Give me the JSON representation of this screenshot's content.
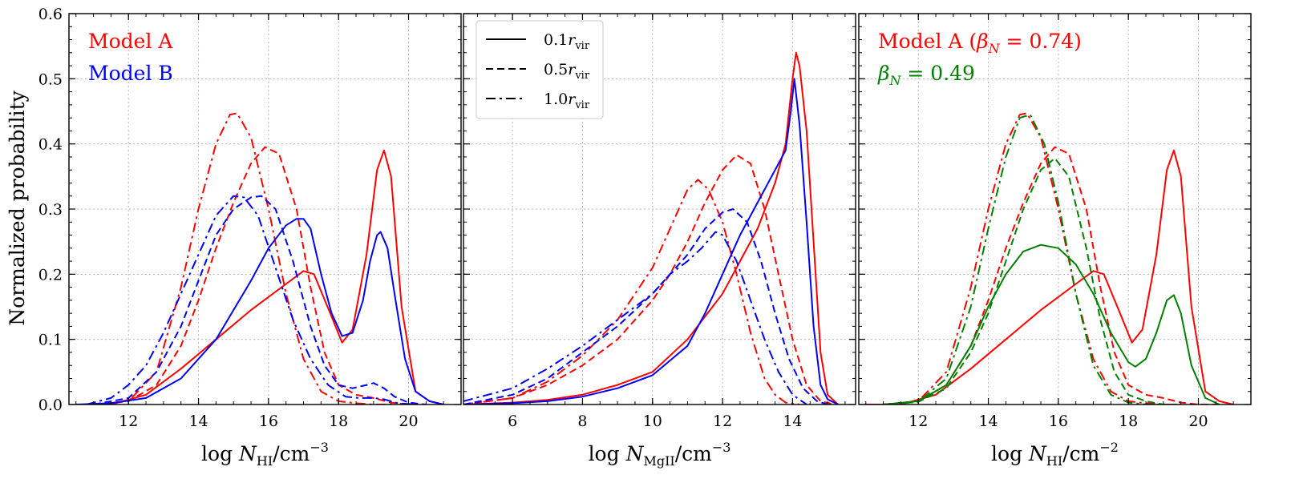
{
  "y_axis_title": "Normalized probability",
  "chart_data": [
    {
      "type": "line",
      "xlabel": "log N_HI/cm^-3",
      "xlabel_parts": {
        "pre": "log ",
        "var": "N",
        "sub": "HI",
        "post": "/cm",
        "sup": "−3"
      },
      "xlim": [
        10.3,
        21.5
      ],
      "ylim": [
        0,
        0.6
      ],
      "xticks": [
        12,
        14,
        16,
        18,
        20
      ],
      "yticks": [
        0.0,
        0.1,
        0.2,
        0.3,
        0.4,
        0.5,
        0.6
      ],
      "grid": true,
      "annotations": [
        {
          "text": "Model A",
          "color": "#ff0000"
        },
        {
          "text": "Model B",
          "color": "#0000ff"
        }
      ],
      "series": [
        {
          "color": "#ff0000",
          "style": "solid",
          "x": [
            10.5,
            11.5,
            12.5,
            13.5,
            14.5,
            15.5,
            16.5,
            17.0,
            17.3,
            17.8,
            18.1,
            18.4,
            18.8,
            19.1,
            19.3,
            19.5,
            19.8,
            20.2,
            20.6,
            21.0
          ],
          "y": [
            0.0,
            0.0,
            0.015,
            0.055,
            0.1,
            0.145,
            0.185,
            0.205,
            0.2,
            0.135,
            0.095,
            0.115,
            0.23,
            0.36,
            0.39,
            0.35,
            0.15,
            0.02,
            0.005,
            0.0
          ]
        },
        {
          "color": "#ff0000",
          "style": "dashed",
          "x": [
            11.0,
            12.0,
            12.8,
            13.5,
            14.0,
            14.5,
            15.0,
            15.5,
            15.9,
            16.3,
            16.8,
            17.2,
            17.6,
            18.0,
            18.5,
            19.0,
            19.5,
            20.0,
            20.5
          ],
          "y": [
            0.0,
            0.005,
            0.03,
            0.09,
            0.16,
            0.24,
            0.31,
            0.37,
            0.395,
            0.385,
            0.3,
            0.18,
            0.08,
            0.03,
            0.015,
            0.01,
            0.003,
            0.0,
            0.0
          ]
        },
        {
          "color": "#ff0000",
          "style": "dashdot",
          "x": [
            11.0,
            12.0,
            12.8,
            13.5,
            14.0,
            14.5,
            14.9,
            15.1,
            15.5,
            16.0,
            16.5,
            17.0,
            17.5,
            18.0,
            18.5,
            19.0,
            19.5
          ],
          "y": [
            0.0,
            0.005,
            0.05,
            0.18,
            0.3,
            0.4,
            0.445,
            0.447,
            0.41,
            0.3,
            0.17,
            0.07,
            0.02,
            0.005,
            0.002,
            0.0,
            0.0
          ]
        },
        {
          "color": "#0000ff",
          "style": "solid",
          "x": [
            10.5,
            11.5,
            12.5,
            13.5,
            14.5,
            15.5,
            16.0,
            16.5,
            16.8,
            17.0,
            17.2,
            17.5,
            17.8,
            18.1,
            18.4,
            18.7,
            18.9,
            19.1,
            19.2,
            19.4,
            19.6,
            19.9,
            20.2,
            20.6,
            21.0
          ],
          "y": [
            0.0,
            0.002,
            0.01,
            0.04,
            0.1,
            0.19,
            0.24,
            0.275,
            0.285,
            0.285,
            0.27,
            0.2,
            0.14,
            0.105,
            0.11,
            0.16,
            0.22,
            0.26,
            0.265,
            0.24,
            0.17,
            0.07,
            0.02,
            0.005,
            0.0
          ]
        },
        {
          "color": "#0000ff",
          "style": "dashed",
          "x": [
            11.0,
            12.0,
            12.8,
            13.5,
            14.0,
            14.5,
            15.0,
            15.5,
            15.8,
            16.2,
            16.7,
            17.2,
            17.6,
            18.0,
            18.4,
            18.8,
            19.0,
            19.3,
            19.6,
            20.0,
            20.5
          ],
          "y": [
            0.0,
            0.01,
            0.05,
            0.12,
            0.19,
            0.26,
            0.3,
            0.318,
            0.32,
            0.3,
            0.22,
            0.12,
            0.06,
            0.03,
            0.025,
            0.03,
            0.033,
            0.025,
            0.012,
            0.003,
            0.0
          ]
        },
        {
          "color": "#0000ff",
          "style": "dashdot",
          "x": [
            10.8,
            11.5,
            12.0,
            12.5,
            13.0,
            13.5,
            14.0,
            14.5,
            15.0,
            15.3,
            15.7,
            16.2,
            16.7,
            17.2,
            17.7,
            18.2,
            18.6,
            19.0,
            19.3,
            19.7,
            20.2
          ],
          "y": [
            0.0,
            0.01,
            0.03,
            0.06,
            0.11,
            0.17,
            0.23,
            0.29,
            0.32,
            0.318,
            0.29,
            0.21,
            0.13,
            0.07,
            0.03,
            0.012,
            0.01,
            0.01,
            0.008,
            0.002,
            0.0
          ]
        }
      ]
    },
    {
      "type": "line",
      "xlabel": "log N_MgII/cm^-3",
      "xlabel_parts": {
        "pre": "log ",
        "var": "N",
        "sub": "MgII",
        "post": "/cm",
        "sup": "−3"
      },
      "xlim": [
        4.6,
        15.8
      ],
      "ylim": [
        0,
        0.6
      ],
      "xticks": [
        6,
        8,
        10,
        12,
        14
      ],
      "yticks": [
        0.0,
        0.1,
        0.2,
        0.3,
        0.4,
        0.5,
        0.6
      ],
      "grid": true,
      "legend": {
        "placement": "top-left",
        "entries": [
          {
            "style": "solid",
            "label_var": "0.1r",
            "label_sub": "vir"
          },
          {
            "style": "dashed",
            "label_var": "0.5r",
            "label_sub": "vir"
          },
          {
            "style": "dashdot",
            "label_var": "1.0r",
            "label_sub": "vir"
          }
        ]
      },
      "series": [
        {
          "color": "#ff0000",
          "style": "solid",
          "x": [
            4.6,
            6.0,
            7.0,
            8.0,
            9.0,
            10.0,
            11.0,
            12.0,
            12.5,
            13.0,
            13.5,
            13.8,
            14.0,
            14.1,
            14.2,
            14.4,
            14.6,
            14.8,
            15.0,
            15.3
          ],
          "y": [
            0.0,
            0.003,
            0.007,
            0.015,
            0.03,
            0.05,
            0.1,
            0.17,
            0.22,
            0.27,
            0.34,
            0.4,
            0.5,
            0.54,
            0.52,
            0.42,
            0.25,
            0.08,
            0.015,
            0.0
          ]
        },
        {
          "color": "#ff0000",
          "style": "dashed",
          "x": [
            4.6,
            6.0,
            7.0,
            8.0,
            9.0,
            10.0,
            10.5,
            11.0,
            11.5,
            12.0,
            12.4,
            12.8,
            13.2,
            13.6,
            14.0,
            14.4,
            14.8,
            15.2
          ],
          "y": [
            0.0,
            0.01,
            0.03,
            0.06,
            0.1,
            0.16,
            0.2,
            0.25,
            0.31,
            0.36,
            0.383,
            0.37,
            0.3,
            0.2,
            0.1,
            0.03,
            0.005,
            0.0
          ]
        },
        {
          "color": "#ff0000",
          "style": "dashdot",
          "x": [
            4.6,
            6.0,
            7.0,
            8.0,
            9.0,
            10.0,
            10.5,
            11.0,
            11.3,
            11.6,
            12.0,
            12.4,
            12.8,
            13.2,
            13.5,
            13.8,
            14.2
          ],
          "y": [
            0.0,
            0.01,
            0.035,
            0.075,
            0.13,
            0.21,
            0.27,
            0.33,
            0.345,
            0.33,
            0.28,
            0.2,
            0.11,
            0.04,
            0.015,
            0.003,
            0.0
          ]
        },
        {
          "color": "#0000ff",
          "style": "solid",
          "x": [
            4.6,
            6.0,
            7.0,
            8.0,
            9.0,
            10.0,
            11.0,
            11.5,
            12.0,
            12.5,
            13.0,
            13.5,
            13.8,
            13.95,
            14.05,
            14.2,
            14.4,
            14.6,
            14.8,
            15.0,
            15.3
          ],
          "y": [
            0.0,
            0.002,
            0.005,
            0.012,
            0.025,
            0.045,
            0.09,
            0.14,
            0.2,
            0.26,
            0.31,
            0.36,
            0.39,
            0.45,
            0.5,
            0.43,
            0.28,
            0.12,
            0.03,
            0.008,
            0.0
          ]
        },
        {
          "color": "#0000ff",
          "style": "dashed",
          "x": [
            4.6,
            6.0,
            7.0,
            8.0,
            9.0,
            10.0,
            10.5,
            11.0,
            11.5,
            12.0,
            12.3,
            12.7,
            13.1,
            13.5,
            13.9,
            14.3,
            14.7,
            15.0
          ],
          "y": [
            0.0,
            0.015,
            0.04,
            0.08,
            0.12,
            0.17,
            0.2,
            0.23,
            0.27,
            0.295,
            0.3,
            0.28,
            0.22,
            0.14,
            0.07,
            0.025,
            0.005,
            0.0
          ]
        },
        {
          "color": "#0000ff",
          "style": "dashdot",
          "x": [
            4.6,
            6.0,
            7.0,
            8.0,
            9.0,
            10.0,
            10.5,
            11.0,
            11.4,
            11.8,
            12.0,
            12.4,
            12.8,
            13.2,
            13.6,
            14.0,
            14.4
          ],
          "y": [
            0.005,
            0.025,
            0.055,
            0.09,
            0.13,
            0.17,
            0.2,
            0.22,
            0.24,
            0.265,
            0.26,
            0.22,
            0.16,
            0.1,
            0.05,
            0.015,
            0.0
          ]
        }
      ]
    },
    {
      "type": "line",
      "xlabel": "log N_HI/cm^-2",
      "xlabel_parts": {
        "pre": "log ",
        "var": "N",
        "sub": "HI",
        "post": "/cm",
        "sup": "−2"
      },
      "xlim": [
        10.3,
        21.5
      ],
      "ylim": [
        0,
        0.6
      ],
      "xticks": [
        12,
        14,
        16,
        18,
        20
      ],
      "yticks": [
        0.0,
        0.1,
        0.2,
        0.3,
        0.4,
        0.5,
        0.6
      ],
      "grid": true,
      "annotations": [
        {
          "text_pre": "Model A (",
          "math": "β",
          "math_sub": "N",
          "text_post": " = 0.74)",
          "color": "#ff0000"
        },
        {
          "text_pre": "",
          "math": "β",
          "math_sub": "N",
          "text_post": " = 0.49",
          "color": "#008000"
        }
      ],
      "series": [
        {
          "color": "#ff0000",
          "style": "solid",
          "x": [
            10.5,
            11.5,
            12.5,
            13.5,
            14.5,
            15.5,
            16.5,
            17.0,
            17.3,
            17.8,
            18.1,
            18.4,
            18.8,
            19.1,
            19.3,
            19.5,
            19.8,
            20.2,
            20.6,
            21.0
          ],
          "y": [
            0.0,
            0.0,
            0.015,
            0.055,
            0.1,
            0.145,
            0.185,
            0.205,
            0.2,
            0.135,
            0.095,
            0.115,
            0.23,
            0.36,
            0.39,
            0.35,
            0.15,
            0.02,
            0.005,
            0.0
          ]
        },
        {
          "color": "#ff0000",
          "style": "dashed",
          "x": [
            11.0,
            12.0,
            12.8,
            13.5,
            14.0,
            14.5,
            15.0,
            15.5,
            15.9,
            16.3,
            16.8,
            17.2,
            17.6,
            18.0,
            18.5,
            19.0,
            19.5,
            20.0,
            20.5
          ],
          "y": [
            0.0,
            0.005,
            0.03,
            0.09,
            0.16,
            0.24,
            0.31,
            0.37,
            0.395,
            0.385,
            0.3,
            0.18,
            0.08,
            0.03,
            0.015,
            0.01,
            0.003,
            0.0,
            0.0
          ]
        },
        {
          "color": "#ff0000",
          "style": "dashdot",
          "x": [
            11.0,
            12.0,
            12.8,
            13.5,
            14.0,
            14.5,
            14.9,
            15.1,
            15.5,
            16.0,
            16.5,
            17.0,
            17.5,
            18.0,
            18.5,
            19.0,
            19.5
          ],
          "y": [
            0.0,
            0.005,
            0.05,
            0.18,
            0.3,
            0.4,
            0.445,
            0.447,
            0.41,
            0.3,
            0.17,
            0.07,
            0.02,
            0.005,
            0.002,
            0.0,
            0.0
          ]
        },
        {
          "color": "#008000",
          "style": "solid",
          "x": [
            11.0,
            12.0,
            12.8,
            13.5,
            14.0,
            14.5,
            15.0,
            15.5,
            16.0,
            16.5,
            17.0,
            17.5,
            18.0,
            18.2,
            18.5,
            18.8,
            19.1,
            19.3,
            19.5,
            19.8,
            20.2,
            20.6
          ],
          "y": [
            0.0,
            0.005,
            0.03,
            0.09,
            0.15,
            0.2,
            0.235,
            0.245,
            0.24,
            0.215,
            0.17,
            0.11,
            0.065,
            0.058,
            0.07,
            0.11,
            0.16,
            0.168,
            0.14,
            0.06,
            0.01,
            0.0
          ]
        },
        {
          "color": "#008000",
          "style": "dashed",
          "x": [
            11.0,
            12.0,
            12.8,
            13.5,
            14.0,
            14.5,
            15.0,
            15.5,
            15.9,
            16.3,
            16.8,
            17.2,
            17.6,
            18.0,
            18.5,
            19.0,
            19.5
          ],
          "y": [
            0.0,
            0.004,
            0.025,
            0.08,
            0.14,
            0.22,
            0.3,
            0.36,
            0.378,
            0.35,
            0.24,
            0.13,
            0.05,
            0.015,
            0.005,
            0.0,
            0.0
          ]
        },
        {
          "color": "#008000",
          "style": "dashdot",
          "x": [
            11.0,
            12.0,
            12.8,
            13.5,
            14.0,
            14.5,
            14.9,
            15.2,
            15.6,
            16.0,
            16.5,
            17.0,
            17.5,
            18.0,
            18.5,
            19.0
          ],
          "y": [
            0.0,
            0.004,
            0.04,
            0.15,
            0.27,
            0.38,
            0.44,
            0.445,
            0.4,
            0.31,
            0.17,
            0.06,
            0.015,
            0.003,
            0.0,
            0.0
          ]
        }
      ]
    }
  ]
}
